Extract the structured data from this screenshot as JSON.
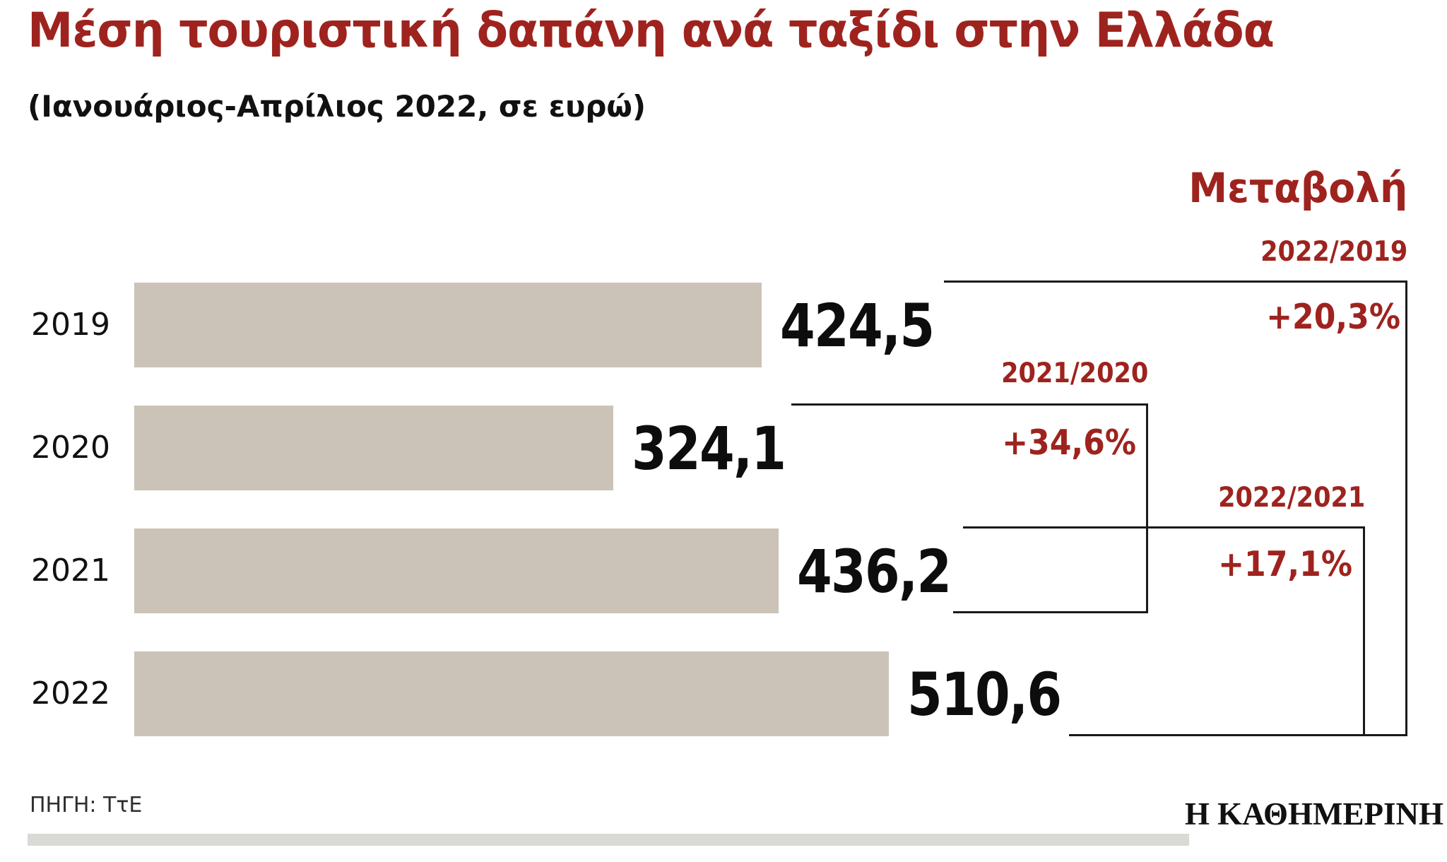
{
  "header": {
    "title": "Μέση τουριστική δαπάνη ανά ταξίδι στην Ελλάδα",
    "subtitle": "(Ιανουάριος-Απρίλιος 2022, σε ευρώ)"
  },
  "change_panel": {
    "header": "Μεταβολή"
  },
  "footer": {
    "source": "ΠΗΓΗ: ΤτΕ",
    "logo": "Η ΚΑΘΗΜΕΡΙΝΗ"
  },
  "colors": {
    "accent_red": "#9e231e",
    "bar_fill": "#cbc3b7",
    "line": "#1a1a1a",
    "divider_gray": "#d9d9d6"
  },
  "chart_data": {
    "type": "bar",
    "orientation": "horizontal",
    "title": "Μέση τουριστική δαπάνη ανά ταξίδι στην Ελλάδα",
    "subtitle": "(Ιανουάριος-Απρίλιος 2022, σε ευρώ)",
    "unit": "ευρώ",
    "categories": [
      "2019",
      "2020",
      "2021",
      "2022"
    ],
    "values": [
      424.5,
      324.1,
      436.2,
      510.6
    ],
    "value_labels": [
      "424,5",
      "324,1",
      "436,2",
      "510,6"
    ],
    "xlim": [
      0,
      510.6
    ],
    "grid": false,
    "legend": "none",
    "annotations": [
      {
        "label": "2022/2019",
        "value": "+20,3%"
      },
      {
        "label": "2021/2020",
        "value": "+34,6%"
      },
      {
        "label": "2022/2021",
        "value": "+17,1%"
      }
    ]
  }
}
